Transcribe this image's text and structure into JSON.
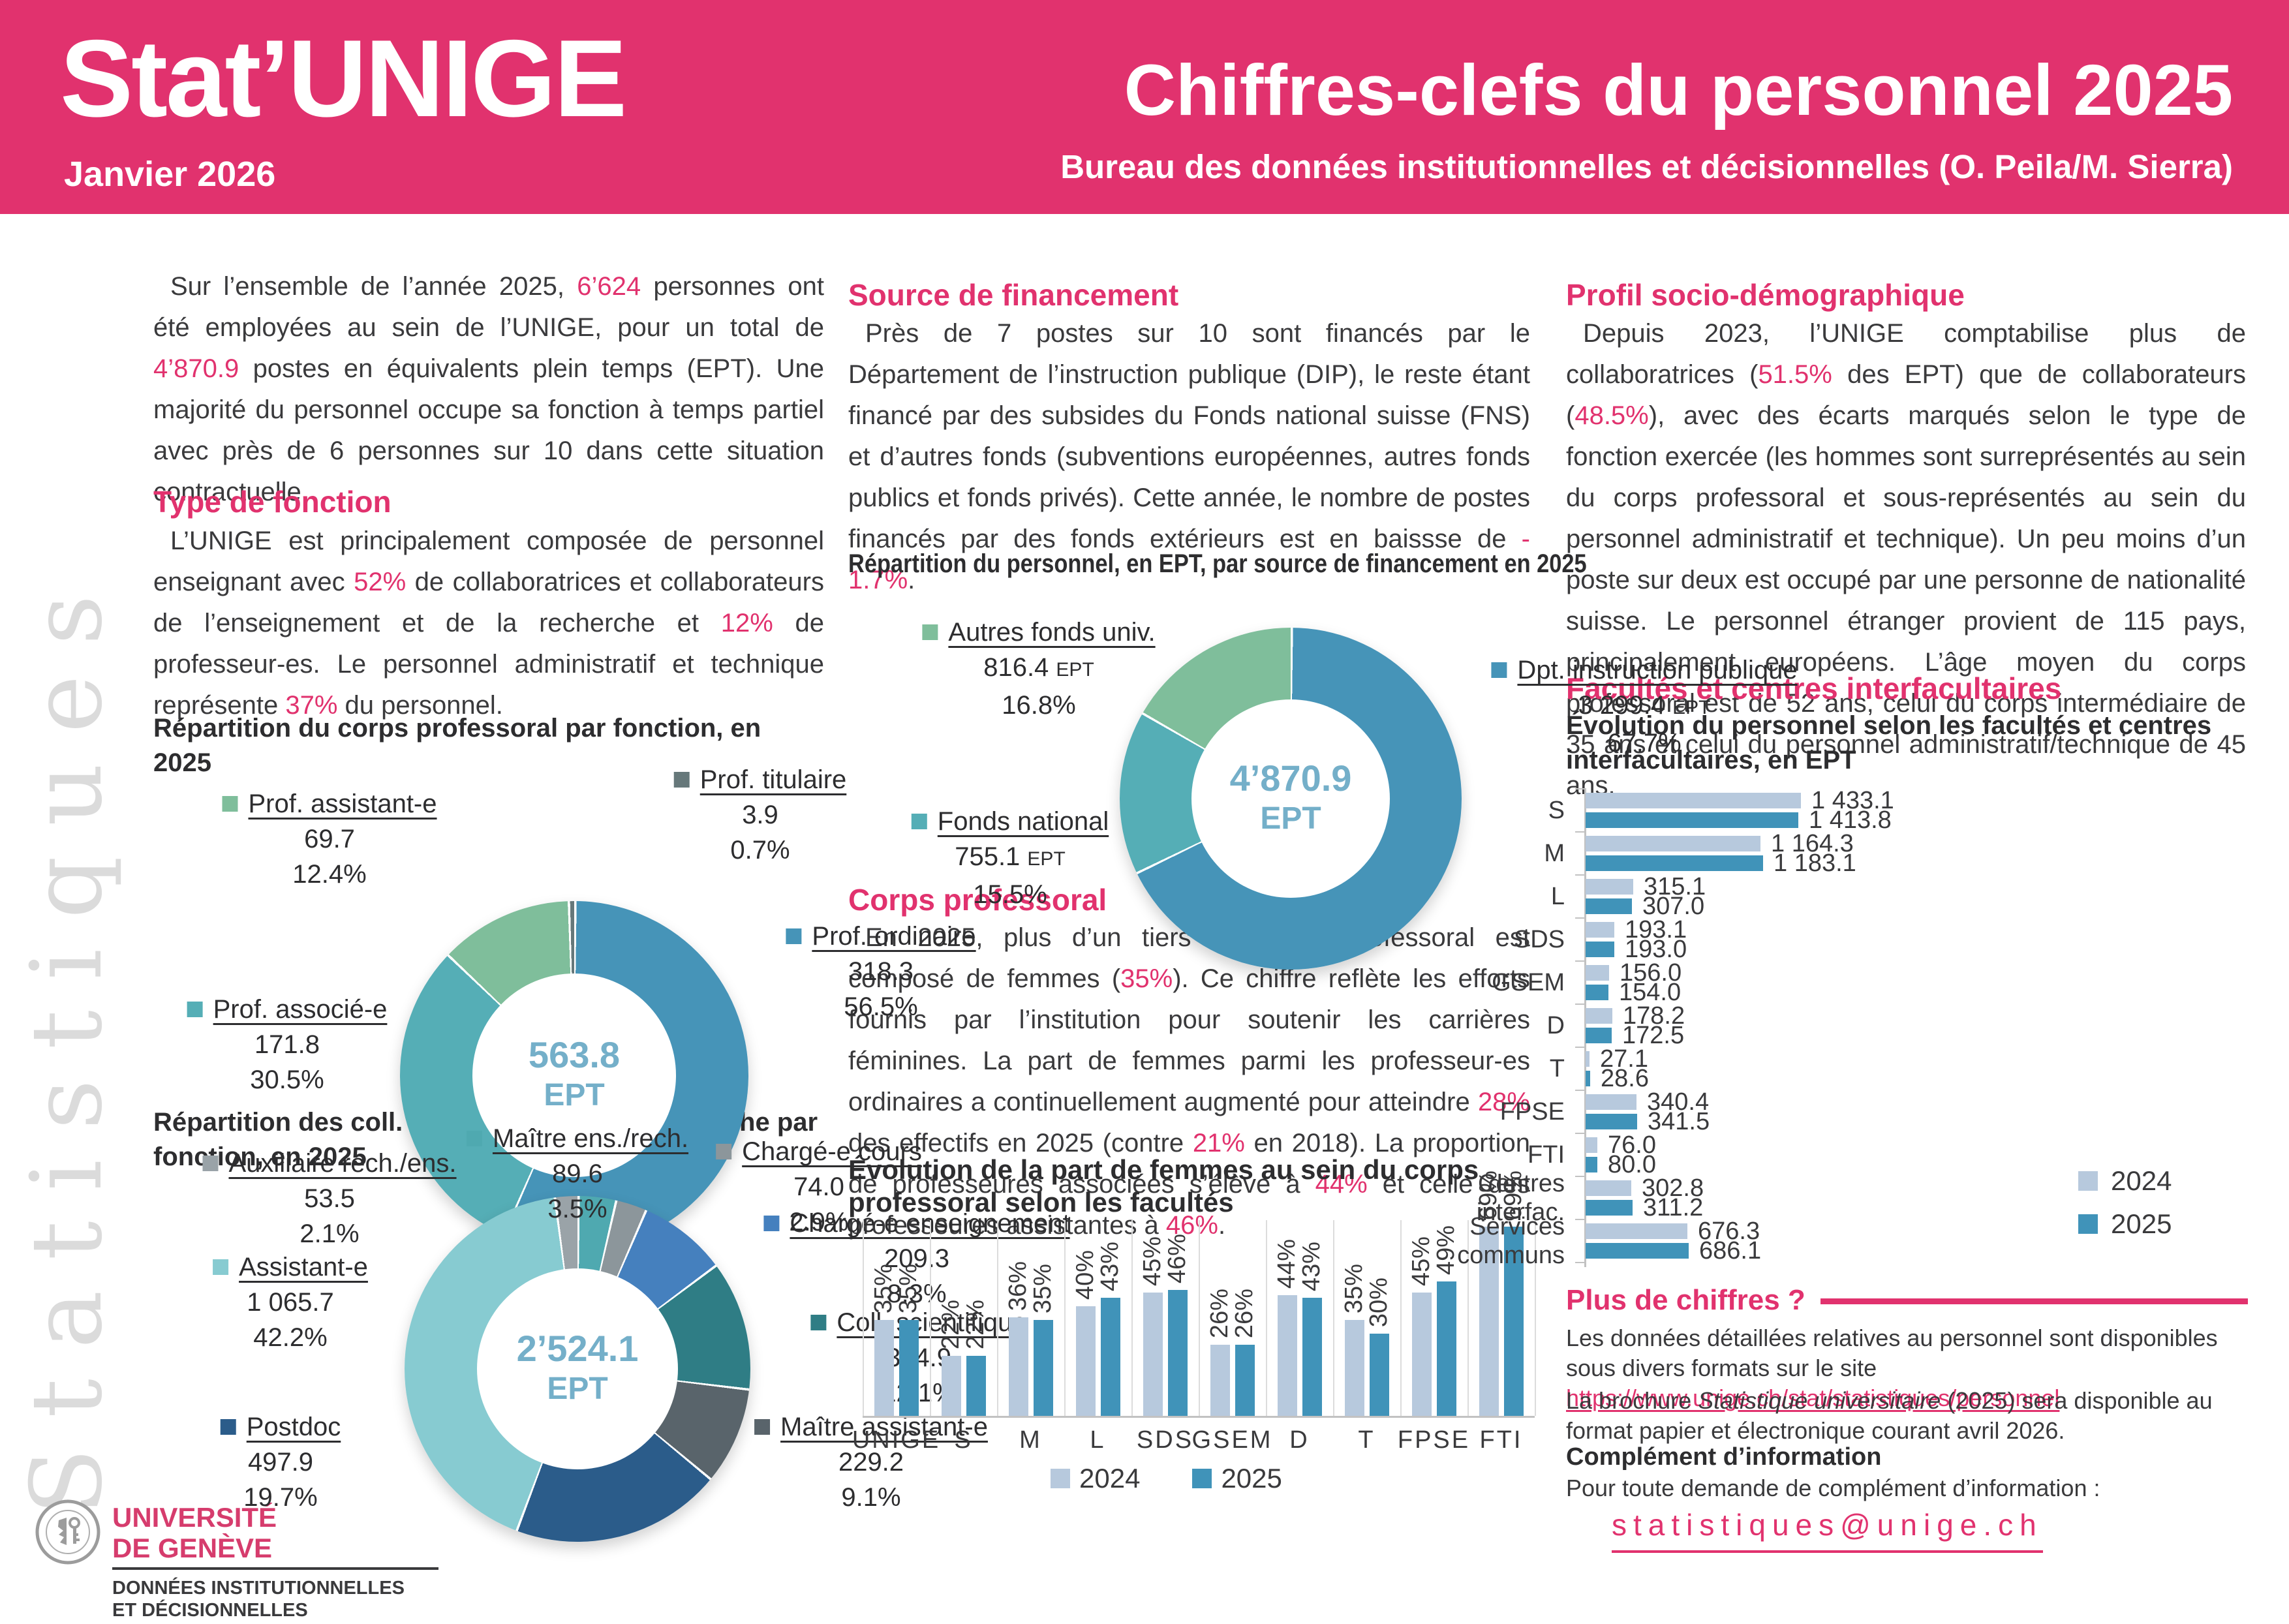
{
  "header": {
    "title_left": "Stat’UNIGE",
    "date": "Janvier 2026",
    "title_right": "Chiffres-clefs du personnel 2025",
    "subtitle_right": "Bureau des données institutionnelles et décisionnelles (O. Peila/M. Sierra)"
  },
  "sidebar_text": "Statistiques",
  "colors": {
    "pink": "#E1326E",
    "blue": "#4694B8",
    "teal": "#55AEB6",
    "green": "#7FBE9B",
    "light_cyan": "#87CBD1",
    "dark_blue": "#2B5C8A",
    "dark_teal": "#2F7D85",
    "dark_gray": "#59646B",
    "gray": "#8C969B",
    "light_gray_slice": "#9AA3A8",
    "bar_2024": "#B7C9DD",
    "bar_2025": "#4093B9",
    "center_text": "#74AFC9"
  },
  "col1": {
    "intro": [
      {
        "t": "Sur l’ensemble de l’année 2025, "
      },
      {
        "t": "6’624",
        "hl": true
      },
      {
        "t": " personnes ont été employées au sein de l’UNIGE, pour un total de "
      },
      {
        "t": "4’870.9",
        "hl": true
      },
      {
        "t": " postes en équivalents plein temps (EPT). Une majorité du personnel occupe sa fonction à temps partiel avec près de 6 personnes sur 10 dans cette situation contractuelle."
      }
    ],
    "type_fonction_heading": "Type de fonction",
    "type_fonction": [
      {
        "t": "L’UNIGE est principalement composée de personnel enseignant avec "
      },
      {
        "t": "52%",
        "hl": true
      },
      {
        "t": " de collaboratrices et collaborateurs de l’enseignement et de la recherche et "
      },
      {
        "t": "12%",
        "hl": true
      },
      {
        "t": " de professeur-es. Le personnel administratif et technique représente "
      },
      {
        "t": "37%",
        "hl": true
      },
      {
        "t": " du personnel."
      }
    ]
  },
  "col2": {
    "source_heading": "Source de financement",
    "source": [
      {
        "t": "Près de 7 postes sur 10 sont financés par le Département de l’instruction publique (DIP), le reste étant financé par des subsides du Fonds national suisse (FNS) et d’autres fonds (subventions européennes, autres fonds publics et fonds privés). Cette année, le nombre de postes financés par des fonds extérieurs est en baissse de "
      },
      {
        "t": "- 1.7%",
        "hl": true
      },
      {
        "t": "."
      }
    ],
    "corps_heading": "Corps professoral",
    "corps": [
      {
        "t": "En 2025, plus d’un tiers du corps professoral est composé de femmes ("
      },
      {
        "t": "35%",
        "hl": true
      },
      {
        "t": "). Ce chiffre reflète les efforts fournis par l’institution pour soutenir les carrières féminines. La part de femmes parmi les professeur-es ordinaires a continuellement augmenté pour atteindre "
      },
      {
        "t": "28%",
        "hl": true
      },
      {
        "t": " des effectifs en 2025 (contre "
      },
      {
        "t": "21%",
        "hl": true
      },
      {
        "t": " en 2018). La proportion de professeures associées s’élève à "
      },
      {
        "t": "44%",
        "hl": true
      },
      {
        "t": " et celle des professeures assistantes à "
      },
      {
        "t": "46%",
        "hl": true
      },
      {
        "t": "."
      }
    ]
  },
  "col3": {
    "profil_heading": "Profil socio-démographique",
    "profil": [
      {
        "t": "Depuis 2023, l’UNIGE comptabilise plus de collaboratrices ("
      },
      {
        "t": "51.5%",
        "hl": true
      },
      {
        "t": " des EPT) que de collaborateurs ("
      },
      {
        "t": "48.5%",
        "hl": true
      },
      {
        "t": "), avec des écarts marqués selon le type de fonction exercée (les hommes sont surreprésentés au sein du corps professoral et sous-représentés au sein du personnel administratif et technique). Un peu moins d’un poste sur deux est occupé par une personne de nationalité suisse. Le personnel étranger provient de 115 pays, principalement européens. L’âge moyen du corps professoral est de 52 ans, celui du corps intermédiaire de 35 ans et celui du personnel administratif/technique de 45 ans."
      }
    ],
    "facultes_heading": "Facultés et centres interfacultaires",
    "plus_heading": "Plus de chiffres ?",
    "plus_info": [
      {
        "t": "Les données détaillées relatives au personnel sont disponibles sous divers formats sur le site "
      },
      {
        "t": "https://www.unige.ch/stat/statistiques/personnel",
        "link": true
      }
    ],
    "brochure": [
      {
        "t": "La brochure "
      },
      {
        "t": "Statistique universitaire",
        "it": true
      },
      {
        "t": " (2025) sera disponible au format papier et électronique courant avril 2026."
      }
    ],
    "complement_heading": "Complément d’information",
    "complement_text": "Pour toute demande de complément d’information :",
    "email": "statistiques@unige.ch"
  },
  "logo": {
    "line1": "UNIVERSITÉ",
    "line2": "DE GENÈVE",
    "line3": "DONNÉES INSTITUTIONNELLES",
    "line4": "ET DÉCISIONNELLES"
  },
  "chart_data": [
    {
      "type": "pie",
      "title": "Répartition du corps professoral par fonction, en 2025",
      "center_value": "563.8",
      "center_unit": "EPT",
      "slices": [
        {
          "label": "Prof. ordinaire",
          "value": "318.3",
          "pct": 56.5,
          "color": "#4694B8"
        },
        {
          "label": "Prof. associé-e",
          "value": "171.8",
          "pct": 30.5,
          "color": "#55AEB6"
        },
        {
          "label": "Prof. assistant-e",
          "value": "69.7",
          "pct": 12.4,
          "color": "#7FBE9B"
        },
        {
          "label": "Prof. titulaire",
          "value": "3.9",
          "pct": 0.7,
          "color": "#66787A"
        }
      ]
    },
    {
      "type": "pie",
      "title": "Répartition des coll. de l’enseignement/recherche par fonction, en 2025",
      "center_value": "2’524.1",
      "center_unit": "EPT",
      "slices": [
        {
          "label": "Maître ens./rech.",
          "value": "89.6",
          "pct": 3.5,
          "color": "#4FA9B0"
        },
        {
          "label": "Chargé-e cours",
          "value": "74.0",
          "pct": 2.9,
          "color": "#8C969B"
        },
        {
          "label": "Chargé-e enseignement",
          "value": "209.3",
          "pct": 8.3,
          "color": "#4580BE"
        },
        {
          "label": "Coll. scientifique",
          "value": "304.9",
          "pct": 12.1,
          "color": "#2F7D85"
        },
        {
          "label": "Maître assistant-e",
          "value": "229.2",
          "pct": 9.1,
          "color": "#59646B"
        },
        {
          "label": "Postdoc",
          "value": "497.9",
          "pct": 19.7,
          "color": "#2B5C8A"
        },
        {
          "label": "Assistant-e",
          "value": "1 065.7",
          "pct": 42.2,
          "color": "#87CBD1"
        },
        {
          "label": "Auxiliaire rech./ens.",
          "value": "53.5",
          "pct": 2.1,
          "color": "#9AA3A8"
        }
      ]
    },
    {
      "type": "pie",
      "title": "Répartition du personnel, en EPT, par source de financement en 2025",
      "center_value": "4’870.9",
      "center_unit": "EPT",
      "value_unit": "EPT",
      "slices": [
        {
          "label": "Dpt. instruction publique",
          "value": "3 299.4",
          "pct": 67.7,
          "color": "#4694B8"
        },
        {
          "label": "Fonds national",
          "value": "755.1",
          "pct": 15.5,
          "color": "#55AEB6"
        },
        {
          "label": "Autres fonds univ.",
          "value": "816.4",
          "pct": 16.8,
          "color": "#7FBE9B"
        }
      ]
    },
    {
      "type": "bar",
      "title": "Évolution de la part de femmes au sein du corps professoral selon les facultés",
      "categories": [
        "UNIGE",
        "S",
        "M",
        "L",
        "SDS",
        "GSEM",
        "D",
        "T",
        "FPSE",
        "FTI"
      ],
      "series": [
        {
          "name": "2024",
          "color": "#B7C9DD",
          "values": [
            35,
            22,
            36,
            40,
            45,
            26,
            44,
            35,
            45,
            69
          ]
        },
        {
          "name": "2025",
          "color": "#4093B9",
          "values": [
            35,
            22,
            35,
            43,
            46,
            26,
            43,
            30,
            49,
            69
          ]
        }
      ],
      "value_suffix": "%",
      "ylim": [
        0,
        69
      ],
      "legend_position": "bottom"
    },
    {
      "type": "bar",
      "orientation": "horizontal",
      "title": "Évolution du personnel selon les facultés et centres interfacultaires, en EPT",
      "categories": [
        [
          "S"
        ],
        [
          "M"
        ],
        [
          "L"
        ],
        [
          "SDS"
        ],
        [
          "GSEM"
        ],
        [
          "D"
        ],
        [
          "T"
        ],
        [
          "FPSE"
        ],
        [
          "FTI"
        ],
        [
          "Centres",
          "interfac."
        ],
        [
          "Services",
          "communs"
        ]
      ],
      "series": [
        {
          "name": "2024",
          "color": "#B7C9DD",
          "values": [
            1433.1,
            1164.3,
            315.1,
            193.1,
            156.0,
            178.2,
            27.1,
            340.4,
            76.0,
            302.8,
            676.3
          ],
          "display": [
            "1 433.1",
            "1 164.3",
            "315.1",
            "193.1",
            "156.0",
            "178.2",
            "27.1",
            "340.4",
            "76.0",
            "302.8",
            "676.3"
          ]
        },
        {
          "name": "2025",
          "color": "#4093B9",
          "values": [
            1413.8,
            1183.1,
            307.0,
            193.0,
            154.0,
            172.5,
            28.6,
            341.5,
            80.0,
            311.2,
            686.1
          ],
          "display": [
            "1 413.8",
            "1 183.1",
            "307.0",
            "193.0",
            "154.0",
            "172.5",
            "28.6",
            "341.5",
            "80.0",
            "311.2",
            "686.1"
          ]
        }
      ],
      "xlim": [
        0,
        1500
      ],
      "legend_position": "right"
    }
  ]
}
